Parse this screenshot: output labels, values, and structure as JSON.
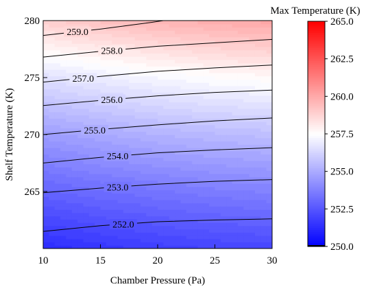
{
  "chart_data": {
    "type": "heatmap",
    "subtype": "filled-contour",
    "xlabel": "Chamber Pressure (Pa)",
    "ylabel": "Shelf Temperature (K)",
    "xlim": [
      10,
      30
    ],
    "ylim": [
      260,
      280
    ],
    "x_ticks": [
      10,
      15,
      20,
      25,
      30
    ],
    "y_ticks": [
      265,
      270,
      275,
      280
    ],
    "x_tick_labels": [
      "10",
      "15",
      "20",
      "25",
      "30"
    ],
    "y_tick_labels": [
      "265",
      "270",
      "275",
      "280"
    ],
    "colorbar": {
      "title": "Max Temperature (K)",
      "range": [
        250.0,
        265.0
      ],
      "ticks": [
        250.0,
        252.5,
        255.0,
        257.5,
        260.0,
        262.5,
        265.0
      ],
      "tick_labels": [
        "250.0",
        "252.5",
        "255.0",
        "257.5",
        "260.0",
        "262.5",
        "265.0"
      ],
      "colormap": [
        "#0000ff",
        "#ffffff",
        "#ff0000"
      ],
      "midpoint": 257.5
    },
    "surface": {
      "x": [
        10,
        15,
        20,
        25,
        30
      ],
      "y": [
        260,
        265,
        270,
        275,
        280
      ],
      "z": [
        [
          251.3,
          251.6,
          251.85,
          252.0,
          252.1
        ],
        [
          252.9,
          253.2,
          253.45,
          253.65,
          253.8
        ],
        [
          254.6,
          254.95,
          255.25,
          255.45,
          255.6
        ],
        [
          256.6,
          256.95,
          257.25,
          257.5,
          257.65
        ],
        [
          258.9,
          259.3,
          259.65,
          259.9,
          260.1
        ]
      ]
    },
    "contours": [
      {
        "level": 252.0,
        "label": "252.0",
        "points": [
          [
            10,
            261.5
          ],
          [
            15,
            262.0
          ],
          [
            20,
            262.35
          ],
          [
            25,
            262.5
          ],
          [
            30,
            262.6
          ]
        ]
      },
      {
        "level": 253.0,
        "label": "253.0",
        "points": [
          [
            10,
            264.9
          ],
          [
            15,
            265.3
          ],
          [
            20,
            265.65
          ],
          [
            25,
            265.9
          ],
          [
            30,
            266.05
          ]
        ]
      },
      {
        "level": 254.0,
        "label": "254.0",
        "points": [
          [
            10,
            267.5
          ],
          [
            15,
            268.0
          ],
          [
            20,
            268.4
          ],
          [
            25,
            268.65
          ],
          [
            30,
            268.85
          ]
        ]
      },
      {
        "level": 255.0,
        "label": "255.0",
        "points": [
          [
            10,
            270.0
          ],
          [
            15,
            270.45
          ],
          [
            20,
            270.85
          ],
          [
            25,
            271.2
          ],
          [
            30,
            271.45
          ]
        ]
      },
      {
        "level": 256.0,
        "label": "256.0",
        "points": [
          [
            10,
            272.55
          ],
          [
            15,
            273.0
          ],
          [
            20,
            273.4
          ],
          [
            25,
            273.7
          ],
          [
            30,
            273.9
          ]
        ]
      },
      {
        "level": 257.0,
        "label": "257.0",
        "points": [
          [
            10,
            274.6
          ],
          [
            15,
            275.1
          ],
          [
            20,
            275.55
          ],
          [
            25,
            275.85
          ],
          [
            30,
            276.1
          ]
        ]
      },
      {
        "level": 258.0,
        "label": "258.0",
        "points": [
          [
            10,
            276.8
          ],
          [
            15,
            277.3
          ],
          [
            20,
            277.75
          ],
          [
            25,
            278.05
          ],
          [
            30,
            278.35
          ]
        ]
      },
      {
        "level": 259.0,
        "label": "259.0",
        "points": [
          [
            10,
            278.7
          ],
          [
            15,
            279.25
          ],
          [
            19.5,
            279.85
          ],
          [
            20.5,
            280.0
          ]
        ]
      }
    ],
    "label_positions": [
      {
        "label": "252.0",
        "x": 17.0
      },
      {
        "label": "253.0",
        "x": 16.5
      },
      {
        "label": "254.0",
        "x": 16.5
      },
      {
        "label": "255.0",
        "x": 14.5
      },
      {
        "label": "256.0",
        "x": 16.0
      },
      {
        "label": "257.0",
        "x": 13.5
      },
      {
        "label": "258.0",
        "x": 16.0
      },
      {
        "label": "259.0",
        "x": 13.0
      }
    ]
  }
}
